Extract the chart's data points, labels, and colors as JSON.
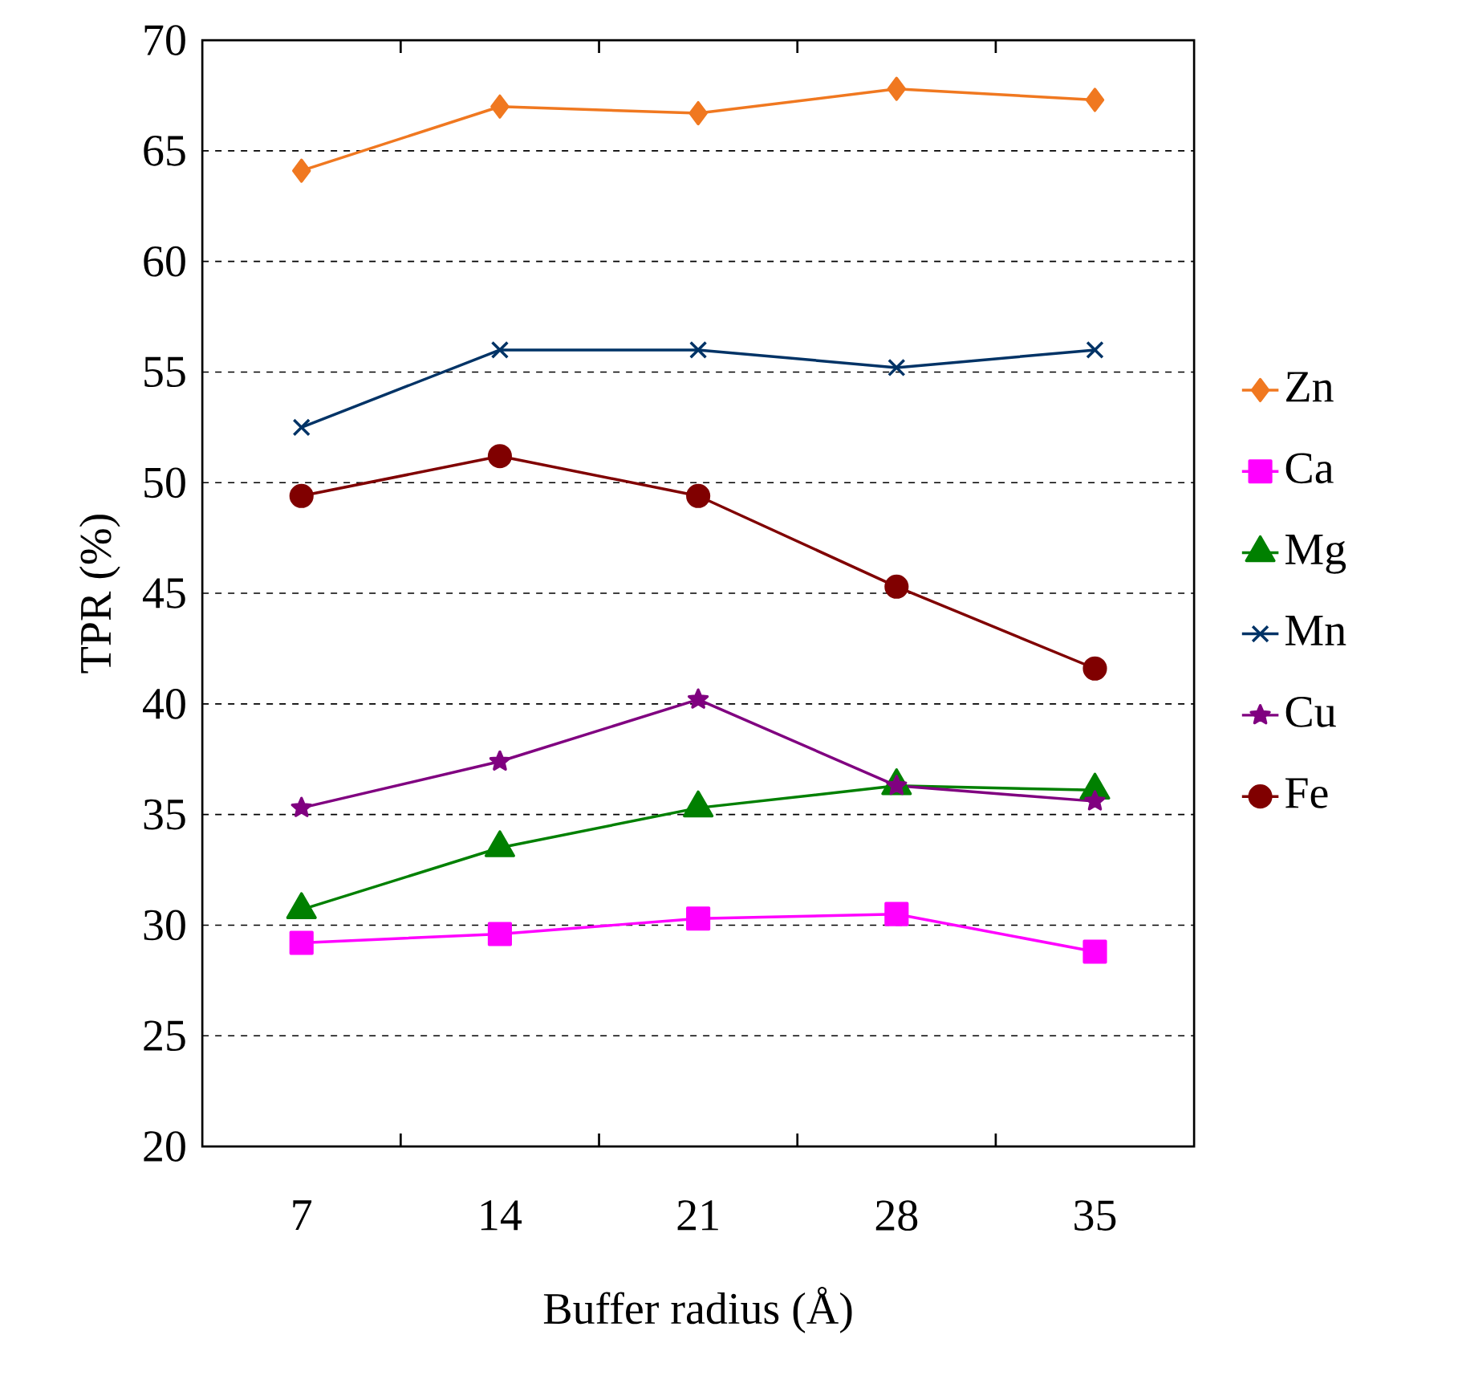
{
  "chart_data": {
    "type": "line",
    "xlabel": "Buffer radius (Å)",
    "ylabel": "TPR (%)",
    "categories": [
      "7",
      "14",
      "21",
      "28",
      "35"
    ],
    "ylim": [
      20,
      70
    ],
    "yticks": [
      20,
      25,
      30,
      35,
      40,
      45,
      50,
      55,
      60,
      65,
      70
    ],
    "grid": "y",
    "legend": "right",
    "series": [
      {
        "name": "Zn",
        "color": "#f07820",
        "marker": "diamond",
        "values": [
          64.1,
          67.0,
          66.7,
          67.8,
          67.3
        ]
      },
      {
        "name": "Ca",
        "color": "#ff00ff",
        "marker": "square",
        "values": [
          29.2,
          29.6,
          30.3,
          30.5,
          28.8
        ]
      },
      {
        "name": "Mg",
        "color": "#008000",
        "marker": "triangle",
        "values": [
          30.7,
          33.5,
          35.3,
          36.3,
          36.1
        ]
      },
      {
        "name": "Mn",
        "color": "#003366",
        "marker": "cross",
        "values": [
          52.5,
          56.0,
          56.0,
          55.2,
          56.0
        ]
      },
      {
        "name": "Cu",
        "color": "#800080",
        "marker": "star",
        "values": [
          35.3,
          37.4,
          40.2,
          36.3,
          35.6
        ]
      },
      {
        "name": "Fe",
        "color": "#800000",
        "marker": "circle",
        "values": [
          49.4,
          51.2,
          49.4,
          45.3,
          41.6
        ]
      }
    ]
  }
}
